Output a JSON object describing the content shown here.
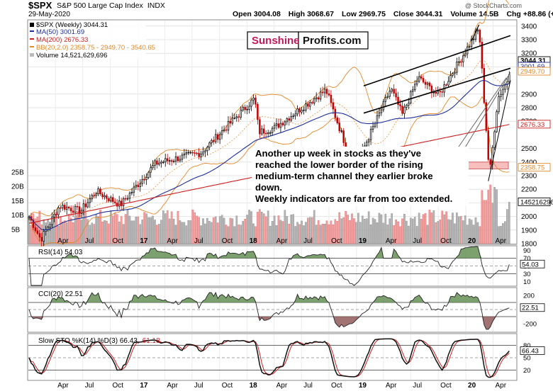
{
  "header": {
    "symbol": "$SPX",
    "name": "S&P 500 Large Cap Index",
    "exchange": "INDX",
    "date": "29-May-2020",
    "open_label": "Open",
    "open": "3004.08",
    "high_label": "High",
    "high": "3068.67",
    "low_label": "Low",
    "low": "2969.75",
    "close_label": "Close",
    "close": "3044.31",
    "volume_label": "Volume",
    "volume": "14.5B",
    "chg_label": "Chg",
    "chg": "+88.86 (+3.01%)",
    "watermark": "@ StockCharts.com"
  },
  "brand": {
    "part1": "Sunshine",
    "part2": "Profits.com"
  },
  "legend": [
    {
      "text": "$SPX (Weekly) 3044.31",
      "color": "#000000"
    },
    {
      "text": "MA(50) 3001.69",
      "color": "#1f2f9a"
    },
    {
      "text": "MA(200) 2676.33",
      "color": "#cc1f1f"
    },
    {
      "text": "BB(20,2.0) 2358.75 - 2949.70 - 3540.65",
      "color": "#e08a2a"
    },
    {
      "text": "Volume 14,521,629,696",
      "color": "#000000"
    }
  ],
  "annotation": [
    "Another up week in stocks as they've",
    "reached the lower border of the rising",
    "medium-term channel they earlier broke",
    "down.",
    "Weekly indicators are far from too extended."
  ],
  "x_axis_labels": [
    "Apr",
    "Jul",
    "Oct",
    "17",
    "Apr",
    "Jul",
    "Oct",
    "18",
    "Apr",
    "Jul",
    "Oct",
    "19",
    "Apr",
    "Jul",
    "Oct",
    "20",
    "Apr"
  ],
  "price_axis_labels": [
    "3400",
    "3300",
    "3200",
    "3100",
    "2900",
    "2800",
    "2700",
    "2500",
    "2400",
    "2300",
    "2200",
    "2100",
    "2000",
    "1900",
    "1800"
  ],
  "volume_axis_labels": [
    "25B",
    "20B",
    "15B",
    "10B",
    "5B"
  ],
  "price_tags": [
    {
      "text": "3044.31",
      "color": "#000000"
    },
    {
      "text": "3001.69",
      "color": "#1f2f9a"
    },
    {
      "text": "2949.70",
      "color": "#e08a2a"
    },
    {
      "text": "2676.33",
      "color": "#cc1f1f"
    },
    {
      "text": "2358.75",
      "color": "#e08a2a"
    },
    {
      "text": "14521629696",
      "color": "#000000"
    }
  ],
  "indicators": {
    "rsi": {
      "label": "RSI(14) 54.03",
      "value": "54.03",
      "axis": [
        "90",
        "70",
        "50",
        "30",
        "10"
      ]
    },
    "cci": {
      "label": "CCI(20) 22.51",
      "value": "22.51",
      "axis": [
        "200",
        "-200"
      ]
    },
    "sto": {
      "label_main": "Slow STO %K(14) %D(3) 66.43,",
      "label_d": "61.18",
      "value": "66.43",
      "axis": [
        "80",
        "50",
        "20"
      ]
    }
  },
  "chart_data": {
    "type": "candlestick",
    "timeframe": "weekly",
    "start_date": "2016-01-04",
    "end_date": "2020-05-29",
    "price_ylim": [
      1800,
      3400
    ],
    "volume_ylim_billions": [
      0,
      25
    ],
    "anchors": [
      {
        "date": "2016-01-04",
        "close": 2000
      },
      {
        "date": "2016-02-12",
        "close": 1830
      },
      {
        "date": "2016-04-15",
        "close": 2080
      },
      {
        "date": "2016-06-24",
        "close": 2040
      },
      {
        "date": "2016-08-15",
        "close": 2185
      },
      {
        "date": "2016-11-04",
        "close": 2085
      },
      {
        "date": "2017-03-01",
        "close": 2390
      },
      {
        "date": "2017-08-01",
        "close": 2470
      },
      {
        "date": "2018-01-26",
        "close": 2870
      },
      {
        "date": "2018-02-09",
        "close": 2620
      },
      {
        "date": "2018-04-01",
        "close": 2650
      },
      {
        "date": "2018-09-21",
        "close": 2930
      },
      {
        "date": "2018-12-24",
        "close": 2350
      },
      {
        "date": "2019-04-26",
        "close": 2940
      },
      {
        "date": "2019-06-03",
        "close": 2750
      },
      {
        "date": "2019-07-26",
        "close": 3020
      },
      {
        "date": "2019-10-02",
        "close": 2890
      },
      {
        "date": "2020-02-14",
        "close": 3380
      },
      {
        "date": "2020-03-20",
        "close": 2300
      },
      {
        "date": "2020-04-17",
        "close": 2870
      },
      {
        "date": "2020-05-29",
        "close": 3044.31
      }
    ],
    "ma50_last": 3001.69,
    "ma200_last": 2676.33,
    "bb_last": [
      2358.75,
      2949.7,
      3540.65
    ],
    "rsi_last": 54.03,
    "cci_last": 22.51,
    "sto_last": [
      66.43,
      61.18
    ],
    "support_zone": [
      2350,
      2400
    ]
  }
}
